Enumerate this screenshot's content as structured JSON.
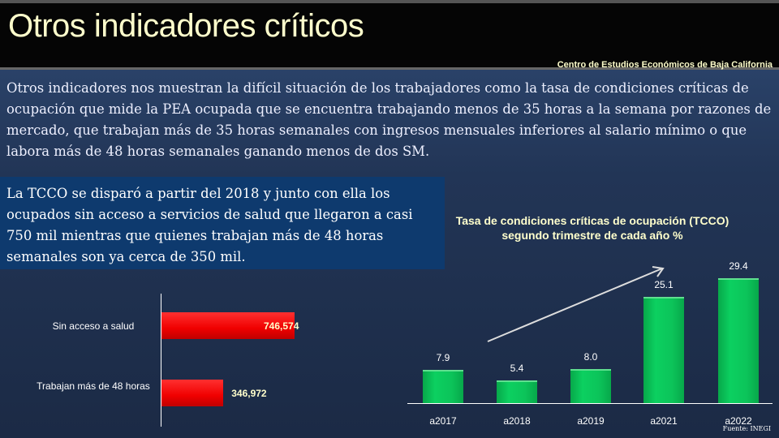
{
  "header": {
    "title": "Otros indicadores críticos",
    "organization": "Centro de Estudios Económicos de Baja California"
  },
  "intro": "Otros indicadores nos muestran la difícil situación de los trabajadores  como la tasa de condiciones críticas de ocupación que mide la PEA ocupada que se encuentra trabajando menos de 35 horas a la semana por razones de mercado, que trabajan más de 35 horas semanales con ingresos mensuales inferiores al salario mínimo o que labora más de 48 horas semanales ganando menos de dos SM.",
  "highlight": "La TCCO se disparó a partir del 2018 y junto con ella los ocupados sin acceso  a servicios de salud que llegaron a casi 750 mil mientras que quienes trabajan más de 48 horas semanales son ya cerca de 350 mil.",
  "source": "Fuente: INEGI",
  "chart_data": [
    {
      "type": "bar",
      "orientation": "horizontal",
      "categories": [
        "Sin acceso a salud",
        "Trabajan más de 48 horas"
      ],
      "values": [
        746574,
        346972
      ],
      "value_labels": [
        "746,574",
        "346,972"
      ],
      "color": "#ff0000"
    },
    {
      "type": "bar",
      "title": "Tasa de condiciones críticas  de ocupación (TCCO) segundo trimestre de cada año %",
      "categories": [
        "a2017",
        "a2018",
        "a2019",
        "a2021",
        "a2022"
      ],
      "values": [
        7.9,
        5.4,
        8.0,
        25.1,
        29.4
      ],
      "value_labels": [
        "7.9",
        "5.4",
        "8.0",
        "25.1",
        "29.4"
      ],
      "color": "#0cc45a",
      "annotation": "upward trend arrow"
    }
  ]
}
